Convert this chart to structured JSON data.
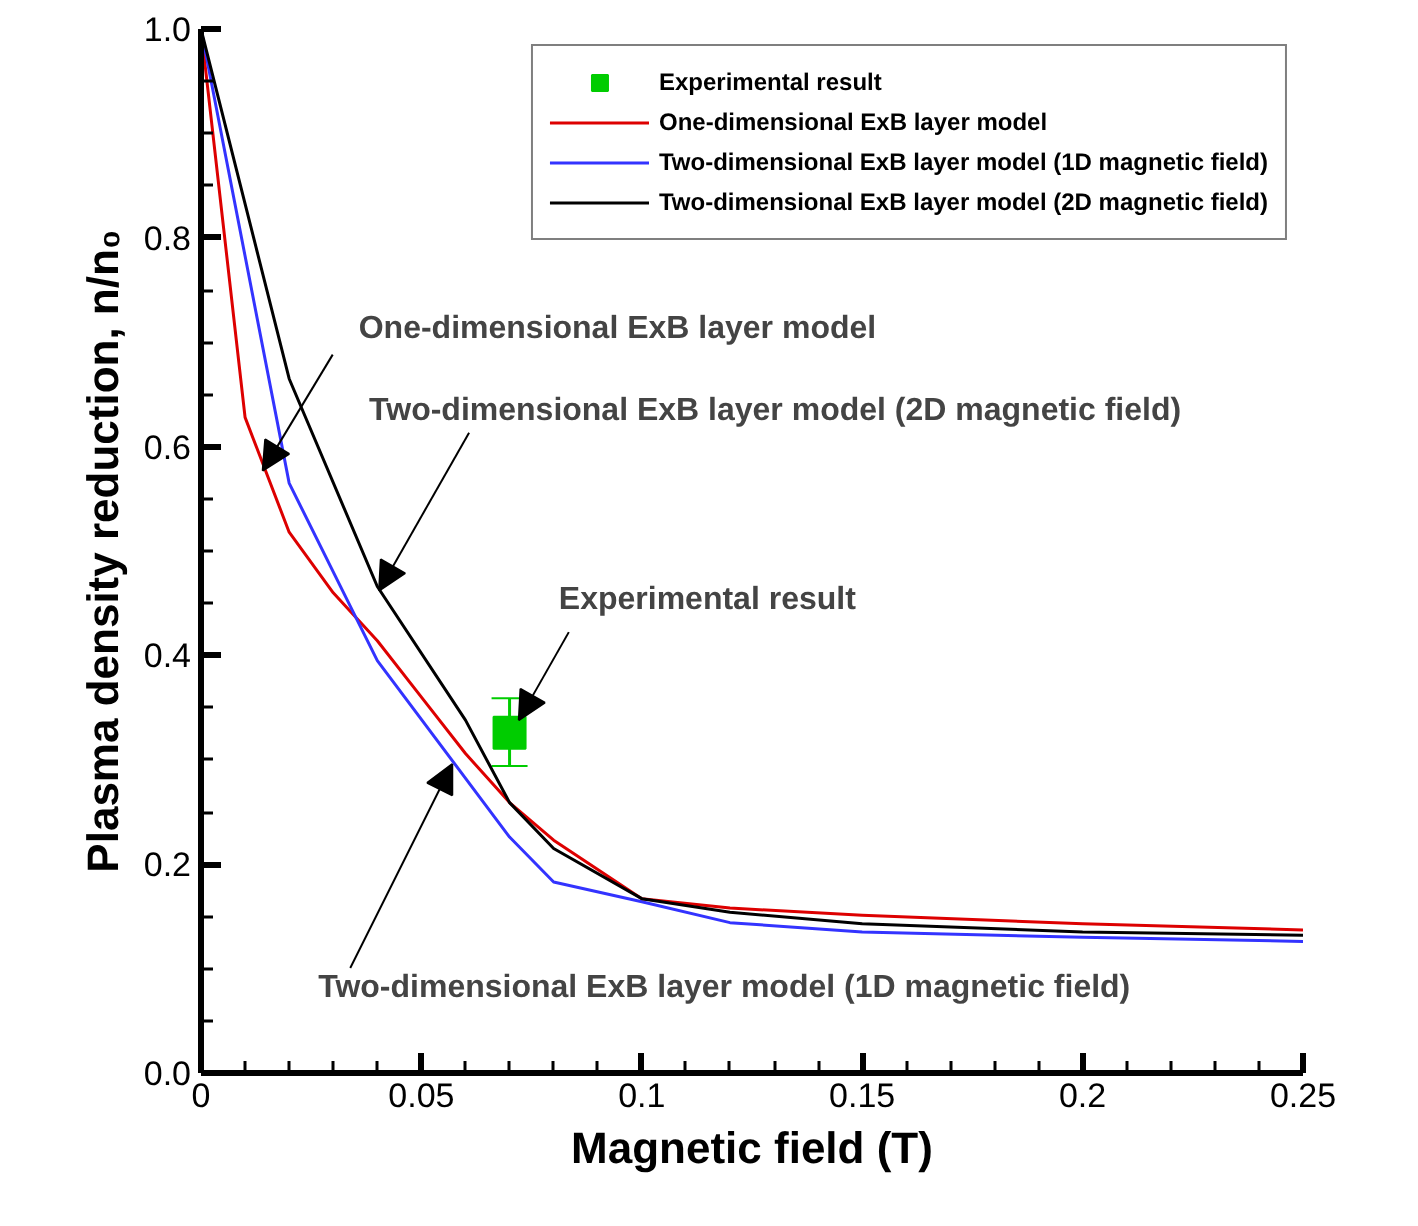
{
  "chart_data": {
    "type": "line",
    "xlabel": "Magnetic field (T)",
    "ylabel": "Plasma density reduction, n/n₀",
    "xlim": [
      0,
      0.25
    ],
    "ylim": [
      0,
      1.0
    ],
    "xticks": [
      0,
      0.05,
      0.1,
      0.15,
      0.2,
      0.25
    ],
    "yticks": [
      {
        "value": 0,
        "label": "0.0"
      },
      {
        "value": 0.2,
        "label": "0.2"
      },
      {
        "value": 0.4,
        "label": "0.4"
      },
      {
        "value": 0.6,
        "label": "0.6"
      },
      {
        "value": 0.8,
        "label": "0.8"
      },
      {
        "value": 1.0,
        "label": "1.0"
      }
    ],
    "grid": false,
    "legend": "top right",
    "series": [
      {
        "name": "Experimental result",
        "type": "scatter",
        "marker": "square",
        "color": "#00cc00",
        "x": [
          0.07
        ],
        "values": [
          0.326
        ],
        "errors": [
          [
            0.294,
            0.359
          ]
        ]
      },
      {
        "name": "One-dimensional ExB layer model",
        "color": "#dd0000",
        "x": [
          0,
          0.01,
          0.02,
          0.03,
          0.04,
          0.05,
          0.06,
          0.07,
          0.08,
          0.1,
          0.12,
          0.15,
          0.2,
          0.25
        ],
        "values": [
          1.0,
          0.628,
          0.518,
          0.46,
          0.414,
          0.36,
          0.306,
          0.259,
          0.223,
          0.167,
          0.158,
          0.151,
          0.143,
          0.137
        ]
      },
      {
        "name": "Two-dimensional ExB layer model (1D magnetic field)",
        "color": "#3333ff",
        "x": [
          0,
          0.02,
          0.04,
          0.07,
          0.08,
          0.1,
          0.12,
          0.15,
          0.2,
          0.25
        ],
        "values": [
          1.0,
          0.565,
          0.395,
          0.226,
          0.183,
          0.164,
          0.144,
          0.135,
          0.13,
          0.126
        ]
      },
      {
        "name": "Two-dimensional ExB layer model (2D magnetic field)",
        "color": "#000000",
        "x": [
          0,
          0.02,
          0.04,
          0.06,
          0.07,
          0.08,
          0.1,
          0.12,
          0.15,
          0.2,
          0.25
        ],
        "values": [
          1.0,
          0.665,
          0.466,
          0.338,
          0.259,
          0.215,
          0.167,
          0.154,
          0.143,
          0.135,
          0.132
        ]
      }
    ],
    "annotations": [
      {
        "text": "One-dimensional ExB layer model",
        "x": 0.014,
        "y": 0.577
      },
      {
        "text": "Two-dimensional ExB layer model (2D magnetic field)",
        "x": 0.0404,
        "y": 0.462
      },
      {
        "text": "Experimental result",
        "x": 0.0721,
        "y": 0.338
      },
      {
        "text": "Two-dimensional ExB layer model (1D magnetic field)",
        "x": 0.057,
        "y": 0.296
      }
    ]
  }
}
